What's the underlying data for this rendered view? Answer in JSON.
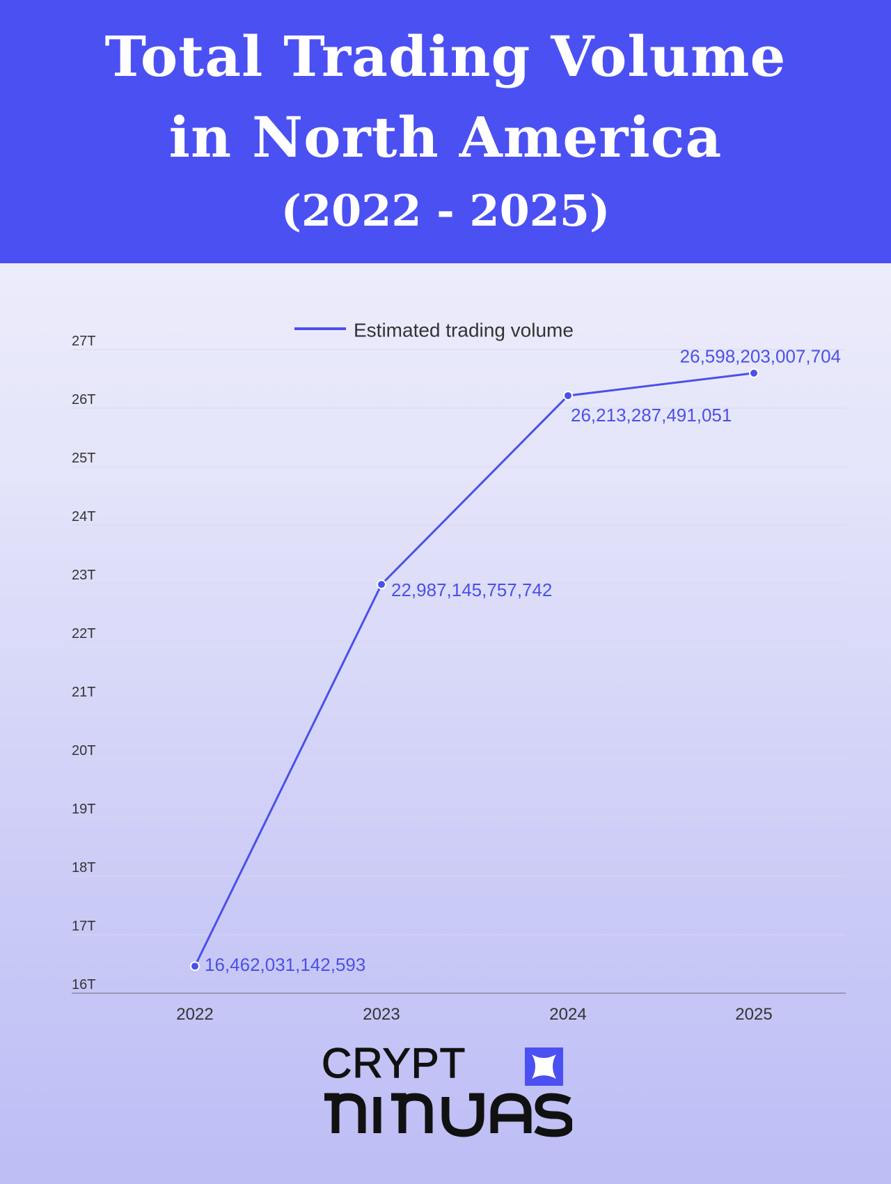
{
  "header": {
    "title_line1": "Total Trading Volume",
    "title_line2": "in North America",
    "title_line3": "(2022 - 2025)"
  },
  "colors": {
    "header_bg": "#4b50f3",
    "series": "#4b50e8",
    "label": "#4b50e8",
    "grid": "#d8d8ee",
    "axis_text": "#333333"
  },
  "chart_data": {
    "type": "line",
    "x": [
      "2022",
      "2023",
      "2024",
      "2025"
    ],
    "series": [
      {
        "name": "Estimated trading volume",
        "values": [
          16462031142593,
          22987145757742,
          26213287491051,
          26598203007704
        ],
        "labels": [
          "16,462,031,142,593",
          "22,987,145,757,742",
          "26,213,287,491,051",
          "26,598,203,007,704"
        ]
      }
    ],
    "y_ticks": [
      "16T",
      "17T",
      "18T",
      "19T",
      "20T",
      "21T",
      "22T",
      "23T",
      "24T",
      "25T",
      "26T",
      "27T"
    ],
    "ylim": [
      16000000000000,
      27000000000000
    ],
    "grid": true,
    "legend": "top-center"
  },
  "logo": {
    "line1": "CRYPT",
    "line2": "NINJAS"
  }
}
